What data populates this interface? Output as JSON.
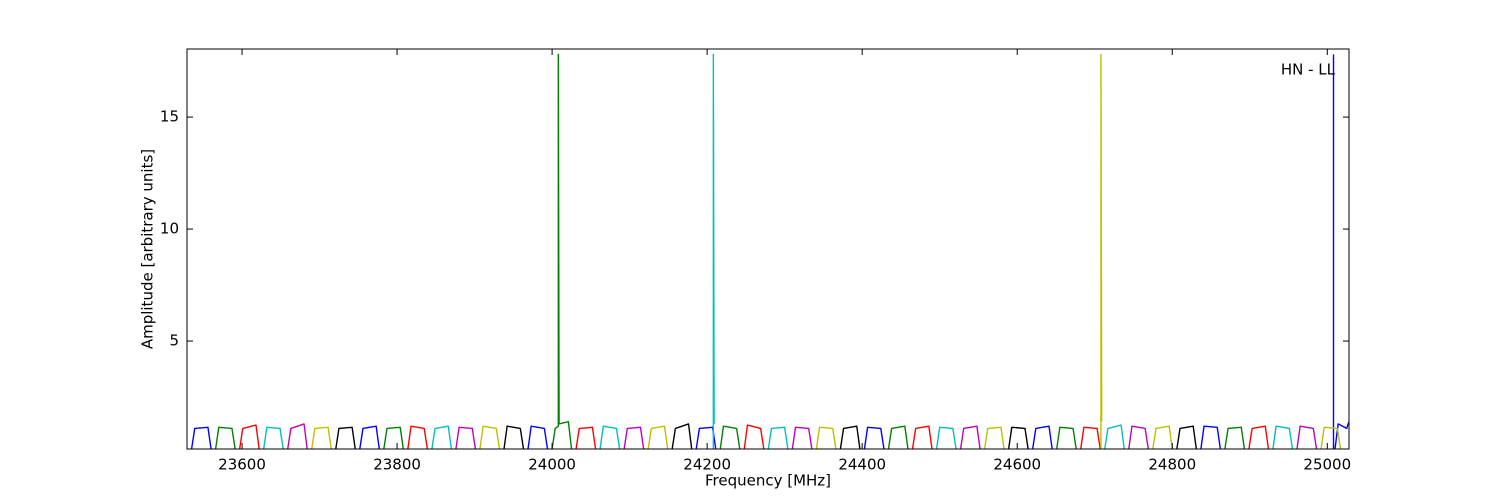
{
  "chart_data": {
    "type": "line",
    "xlabel": "Frequency [MHz]",
    "ylabel": "Amplitude [arbitrary units]",
    "annotation": "HN - LL",
    "xlim": [
      23529,
      25028
    ],
    "ylim": [
      0.18,
      18.04
    ],
    "xticks": [
      23600,
      23800,
      24000,
      24200,
      24400,
      24600,
      24800,
      25000
    ],
    "yticks": [
      5,
      10,
      15
    ],
    "series": [
      {
        "color": "#0000ff",
        "x": [
          23535,
          23539,
          23556,
          23560,
          23562,
          23752,
          23756,
          23773,
          23777,
          23779,
          23969,
          23973,
          23990,
          23994,
          23996,
          24186,
          24190,
          24207,
          24211,
          24213,
          24403,
          24407,
          24424,
          24428,
          24430,
          24620,
          24624,
          24641,
          24645,
          24647,
          24837,
          24841,
          24858,
          24862,
          24864,
          25008,
          25008,
          25009,
          25010,
          25014,
          25025,
          25028
        ],
        "values": [
          0.2,
          1.1,
          1.15,
          0.2,
          null,
          0.2,
          1.1,
          1.2,
          0.2,
          null,
          0.2,
          1.2,
          1.1,
          0.2,
          null,
          0.2,
          1.1,
          1.15,
          0.2,
          null,
          0.2,
          1.15,
          1.1,
          0.2,
          null,
          0.2,
          1.1,
          1.2,
          0.2,
          null,
          0.2,
          1.2,
          1.15,
          0.2,
          null,
          0.2,
          17.8,
          null,
          0.2,
          1.3,
          1.1,
          1.4
        ]
      },
      {
        "color": "#008000",
        "x": [
          23566,
          23570,
          23587,
          23591,
          23593,
          23783,
          23787,
          23804,
          23808,
          23810,
          24000,
          24004,
          24008,
          24008,
          24009,
          24021,
          24025,
          24027,
          24217,
          24221,
          24238,
          24242,
          24244,
          24434,
          24438,
          24455,
          24459,
          24461,
          24651,
          24655,
          24672,
          24676,
          24678,
          24868,
          24872,
          24889,
          24893
        ],
        "values": [
          0.2,
          1.15,
          1.1,
          0.2,
          null,
          0.2,
          1.1,
          1.15,
          0.2,
          null,
          0.2,
          1.1,
          1.2,
          17.8,
          1.3,
          1.4,
          0.2,
          null,
          0.2,
          1.2,
          1.1,
          0.2,
          null,
          0.2,
          1.1,
          1.2,
          0.2,
          null,
          0.2,
          1.15,
          1.1,
          0.2,
          null,
          0.2,
          1.1,
          1.15,
          0.2
        ]
      },
      {
        "color": "#ff0000",
        "x": [
          23597,
          23601,
          23618,
          23622,
          23624,
          23814,
          23818,
          23835,
          23839,
          23841,
          24031,
          24035,
          24052,
          24056,
          24058,
          24248,
          24252,
          24269,
          24273,
          24275,
          24465,
          24469,
          24486,
          24490,
          24492,
          24682,
          24686,
          24703,
          24707,
          24709,
          24899,
          24903,
          24920,
          24924
        ],
        "values": [
          0.2,
          1.1,
          1.25,
          0.2,
          null,
          0.2,
          1.2,
          1.1,
          0.2,
          null,
          0.2,
          1.1,
          1.15,
          0.2,
          null,
          0.2,
          1.25,
          1.1,
          0.2,
          null,
          0.2,
          1.1,
          1.2,
          0.2,
          null,
          0.2,
          1.15,
          1.1,
          0.2,
          null,
          0.2,
          1.1,
          1.2,
          0.2
        ]
      },
      {
        "color": "#00bfbf",
        "x": [
          23628,
          23632,
          23649,
          23653,
          23655,
          23845,
          23849,
          23866,
          23870,
          23872,
          24062,
          24066,
          24083,
          24087,
          24089,
          24208,
          24208,
          24209,
          24210,
          24279,
          24283,
          24300,
          24304,
          24306,
          24496,
          24500,
          24517,
          24521,
          24523,
          24713,
          24717,
          24734,
          24738,
          24740,
          24930,
          24934,
          24951,
          24955
        ],
        "values": [
          0.2,
          1.15,
          1.1,
          0.2,
          null,
          0.2,
          1.1,
          1.2,
          0.2,
          null,
          0.2,
          1.2,
          1.1,
          0.2,
          null,
          0.2,
          17.8,
          1.3,
          null,
          0.2,
          1.1,
          1.15,
          0.2,
          null,
          0.2,
          1.15,
          1.1,
          0.2,
          null,
          0.2,
          1.1,
          1.25,
          0.2,
          null,
          0.2,
          1.2,
          1.1,
          0.2
        ]
      },
      {
        "color": "#bf00bf",
        "x": [
          23659,
          23663,
          23680,
          23684,
          23686,
          23876,
          23880,
          23897,
          23901,
          23903,
          24093,
          24097,
          24114,
          24118,
          24120,
          24310,
          24314,
          24331,
          24335,
          24337,
          24527,
          24531,
          24548,
          24552,
          24554,
          24744,
          24748,
          24765,
          24769,
          24771,
          24961,
          24965,
          24982,
          24986
        ],
        "values": [
          0.2,
          1.1,
          1.3,
          0.2,
          null,
          0.2,
          1.15,
          1.1,
          0.2,
          null,
          0.2,
          1.1,
          1.15,
          0.2,
          null,
          0.2,
          1.15,
          1.1,
          0.2,
          null,
          0.2,
          1.1,
          1.2,
          0.2,
          null,
          0.2,
          1.2,
          1.1,
          0.2,
          null,
          0.2,
          1.2,
          1.1,
          0.2
        ]
      },
      {
        "color": "#bfbf00",
        "x": [
          23690,
          23694,
          23711,
          23715,
          23717,
          23907,
          23911,
          23928,
          23932,
          23934,
          24124,
          24128,
          24145,
          24149,
          24151,
          24341,
          24345,
          24362,
          24366,
          24368,
          24558,
          24562,
          24579,
          24583,
          24585,
          24708,
          24708,
          24709,
          24710,
          24775,
          24779,
          24796,
          24800,
          24802,
          24992,
          24996,
          25013,
          25017
        ],
        "values": [
          0.2,
          1.1,
          1.15,
          0.2,
          null,
          0.2,
          1.2,
          1.1,
          0.2,
          null,
          0.2,
          1.1,
          1.2,
          0.2,
          null,
          0.2,
          1.15,
          1.1,
          0.2,
          null,
          0.2,
          1.1,
          1.15,
          0.2,
          null,
          0.2,
          17.8,
          1.4,
          null,
          0.2,
          1.1,
          1.2,
          0.2,
          null,
          0.2,
          1.15,
          1.1,
          0.2
        ]
      },
      {
        "color": "#000000",
        "x": [
          23721,
          23725,
          23742,
          23746,
          23748,
          23938,
          23942,
          23959,
          23963,
          23965,
          24155,
          24159,
          24176,
          24180,
          24182,
          24372,
          24376,
          24393,
          24397,
          24399,
          24589,
          24593,
          24610,
          24614,
          24616,
          24806,
          24810,
          24827,
          24831
        ],
        "values": [
          0.2,
          1.1,
          1.15,
          0.2,
          null,
          0.2,
          1.2,
          1.1,
          0.2,
          null,
          0.2,
          1.1,
          1.3,
          0.2,
          null,
          0.2,
          1.1,
          1.2,
          0.2,
          null,
          0.2,
          1.15,
          1.1,
          0.2,
          null,
          0.2,
          1.1,
          1.2,
          0.2
        ]
      }
    ]
  }
}
